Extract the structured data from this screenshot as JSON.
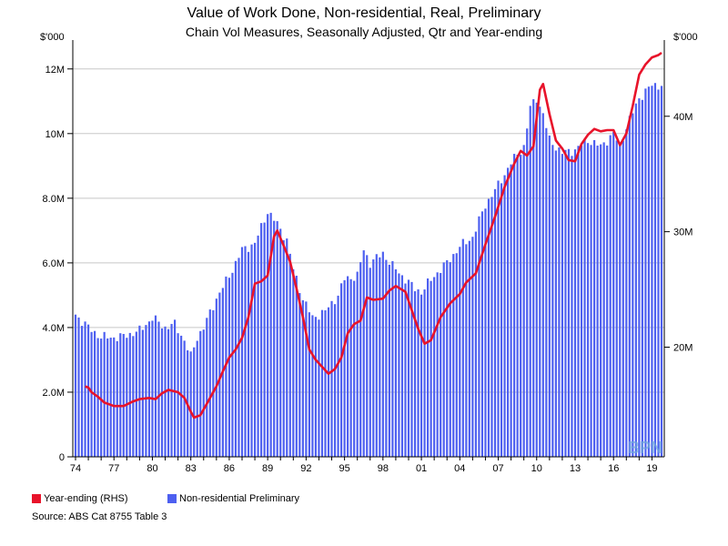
{
  "chart_data": {
    "type": "bar",
    "title": "Value of Work Done, Non-residential, Real, Preliminary",
    "subtitle": "Chain Vol Measures, Seasonally Adjusted, Qtr and Year-ending",
    "left_axis_unit": "$'000",
    "right_axis_unit": "$'000",
    "left_axis": {
      "ylim": [
        0,
        12500000
      ],
      "ticks": [
        0,
        2000000,
        4000000,
        6000000,
        8000000,
        10000000,
        12000000
      ],
      "tick_labels": [
        "0",
        "2.0M",
        "4.0M",
        "6.0M",
        "8.0M",
        "10M",
        "12M"
      ]
    },
    "right_axis": {
      "ylim": [
        10500000,
        45500000
      ],
      "ticks": [
        20000000,
        30000000,
        40000000
      ],
      "tick_labels": [
        "20M",
        "30M",
        "40M"
      ]
    },
    "x_axis": {
      "start_year": 1974.0,
      "end_year": 2019.75,
      "tick_labels": [
        "74",
        "77",
        "80",
        "83",
        "86",
        "89",
        "92",
        "95",
        "98",
        "01",
        "04",
        "07",
        "10",
        "13",
        "16",
        "19"
      ]
    },
    "grid": true,
    "series": [
      {
        "name": "Non-residential Preliminary",
        "axis": "left",
        "color": "#4d5ff0",
        "kind": "bar",
        "anchors": [
          [
            1974.0,
            4.4
          ],
          [
            1975.0,
            4.0
          ],
          [
            1976.0,
            3.7
          ],
          [
            1977.5,
            3.7
          ],
          [
            1979.0,
            3.9
          ],
          [
            1980.0,
            4.3
          ],
          [
            1981.0,
            4.0
          ],
          [
            1981.75,
            4.1
          ],
          [
            1982.5,
            3.6
          ],
          [
            1983.0,
            3.1
          ],
          [
            1983.5,
            3.7
          ],
          [
            1984.0,
            4.0
          ],
          [
            1985.0,
            4.9
          ],
          [
            1986.0,
            5.6
          ],
          [
            1987.0,
            6.4
          ],
          [
            1988.0,
            6.6
          ],
          [
            1989.0,
            7.6
          ],
          [
            1989.75,
            7.2
          ],
          [
            1990.5,
            6.7
          ],
          [
            1991.0,
            5.8
          ],
          [
            1991.75,
            4.9
          ],
          [
            1992.5,
            4.3
          ],
          [
            1993.5,
            4.5
          ],
          [
            1994.5,
            5.0
          ],
          [
            1995.0,
            5.5
          ],
          [
            1996.0,
            5.6
          ],
          [
            1996.5,
            6.4
          ],
          [
            1997.0,
            6.0
          ],
          [
            1998.0,
            6.3
          ],
          [
            1998.75,
            5.9
          ],
          [
            1999.5,
            5.6
          ],
          [
            2000.5,
            5.2
          ],
          [
            2001.0,
            5.1
          ],
          [
            2002.0,
            5.6
          ],
          [
            2003.0,
            6.0
          ],
          [
            2004.0,
            6.5
          ],
          [
            2005.0,
            6.8
          ],
          [
            2006.0,
            7.8
          ],
          [
            2007.0,
            8.4
          ],
          [
            2008.0,
            9.1
          ],
          [
            2009.0,
            9.6
          ],
          [
            2009.5,
            10.8
          ],
          [
            2010.0,
            11.1
          ],
          [
            2010.5,
            10.6
          ],
          [
            2011.0,
            9.8
          ],
          [
            2012.0,
            9.4
          ],
          [
            2013.0,
            9.5
          ],
          [
            2014.0,
            9.8
          ],
          [
            2015.0,
            9.6
          ],
          [
            2016.0,
            10.0
          ],
          [
            2016.5,
            9.6
          ],
          [
            2017.0,
            10.2
          ],
          [
            2018.0,
            11.1
          ],
          [
            2019.0,
            11.5
          ],
          [
            2019.75,
            11.5
          ]
        ],
        "unit_scale": 1000000
      },
      {
        "name": "Year-ending (RHS)",
        "axis": "right",
        "color": "#e8132a",
        "kind": "line",
        "points": [
          [
            1974.75,
            16.6
          ],
          [
            1975.0,
            16.5
          ],
          [
            1975.25,
            16.1
          ],
          [
            1975.75,
            15.7
          ],
          [
            1976.25,
            15.2
          ],
          [
            1977.0,
            14.9
          ],
          [
            1977.75,
            14.9
          ],
          [
            1978.5,
            15.3
          ],
          [
            1979.0,
            15.5
          ],
          [
            1979.75,
            15.6
          ],
          [
            1980.25,
            15.5
          ],
          [
            1980.75,
            16.0
          ],
          [
            1981.25,
            16.3
          ],
          [
            1982.0,
            16.1
          ],
          [
            1982.5,
            15.6
          ],
          [
            1983.0,
            14.4
          ],
          [
            1983.25,
            13.9
          ],
          [
            1983.75,
            14.1
          ],
          [
            1984.25,
            15.1
          ],
          [
            1985.0,
            16.6
          ],
          [
            1985.5,
            17.9
          ],
          [
            1986.0,
            19.1
          ],
          [
            1986.5,
            19.8
          ],
          [
            1987.0,
            20.8
          ],
          [
            1987.5,
            22.6
          ],
          [
            1988.0,
            25.5
          ],
          [
            1988.5,
            25.7
          ],
          [
            1989.0,
            26.2
          ],
          [
            1989.5,
            29.6
          ],
          [
            1989.75,
            30.1
          ],
          [
            1990.25,
            28.8
          ],
          [
            1990.75,
            27.4
          ],
          [
            1991.25,
            25.1
          ],
          [
            1991.75,
            22.6
          ],
          [
            1992.25,
            19.8
          ],
          [
            1992.75,
            18.9
          ],
          [
            1993.25,
            18.3
          ],
          [
            1993.75,
            17.7
          ],
          [
            1994.25,
            18.1
          ],
          [
            1994.75,
            19.1
          ],
          [
            1995.25,
            21.2
          ],
          [
            1995.75,
            22.0
          ],
          [
            1996.25,
            22.3
          ],
          [
            1996.75,
            24.3
          ],
          [
            1997.25,
            24.1
          ],
          [
            1998.0,
            24.2
          ],
          [
            1998.5,
            24.9
          ],
          [
            1999.0,
            25.3
          ],
          [
            1999.75,
            24.8
          ],
          [
            2000.25,
            23.2
          ],
          [
            2000.75,
            21.6
          ],
          [
            2001.25,
            20.3
          ],
          [
            2001.75,
            20.6
          ],
          [
            2002.5,
            22.6
          ],
          [
            2003.25,
            23.8
          ],
          [
            2004.0,
            24.6
          ],
          [
            2004.5,
            25.6
          ],
          [
            2005.25,
            26.4
          ],
          [
            2006.0,
            28.9
          ],
          [
            2006.75,
            31.3
          ],
          [
            2007.5,
            33.9
          ],
          [
            2008.25,
            35.9
          ],
          [
            2008.75,
            37.0
          ],
          [
            2009.25,
            36.6
          ],
          [
            2009.75,
            37.4
          ],
          [
            2010.25,
            42.3
          ],
          [
            2010.5,
            42.8
          ],
          [
            2011.0,
            40.2
          ],
          [
            2011.5,
            37.9
          ],
          [
            2012.0,
            37.2
          ],
          [
            2012.5,
            36.2
          ],
          [
            2013.0,
            36.1
          ],
          [
            2013.5,
            37.6
          ],
          [
            2014.0,
            38.4
          ],
          [
            2014.5,
            38.9
          ],
          [
            2015.0,
            38.7
          ],
          [
            2015.5,
            38.8
          ],
          [
            2016.0,
            38.8
          ],
          [
            2016.5,
            37.5
          ],
          [
            2017.0,
            38.5
          ],
          [
            2017.5,
            40.9
          ],
          [
            2018.0,
            43.6
          ],
          [
            2018.5,
            44.5
          ],
          [
            2019.0,
            45.1
          ],
          [
            2019.5,
            45.3
          ],
          [
            2019.75,
            45.5
          ]
        ],
        "unit_scale": 1000000
      }
    ],
    "legend_position": "bottom-left"
  },
  "legend": {
    "line_label": "Year-ending (RHS)",
    "bar_label": "Non-residential Preliminary"
  },
  "source": "Source: ABS Cat 8755 Table 3",
  "watermark": "BPN"
}
